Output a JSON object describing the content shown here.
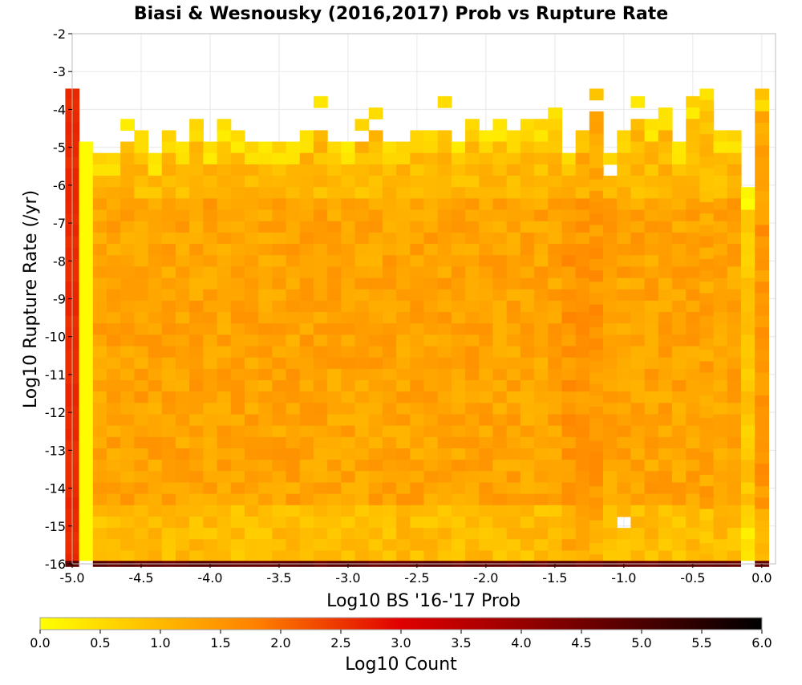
{
  "chart_data": {
    "type": "heatmap",
    "title": "Biasi & Wesnousky (2016,2017) Prob vs Rupture Rate",
    "xlabel": "Log10 BS '16-'17 Prob",
    "ylabel": "Log10 Rupture Rate (/yr)",
    "xlim": [
      -5.0,
      0.1
    ],
    "ylim": [
      -16,
      -2
    ],
    "x_ticks": [
      "-5.0",
      "-4.5",
      "-4.0",
      "-3.5",
      "-3.0",
      "-2.5",
      "-2.0",
      "-1.5",
      "-1.0",
      "-0.5",
      "0.0"
    ],
    "x_tick_values": [
      -5.0,
      -4.5,
      -4.0,
      -3.5,
      -3.0,
      -2.5,
      -2.0,
      -1.5,
      -1.0,
      -0.5,
      0.0
    ],
    "y_ticks": [
      "-2",
      "-3",
      "-4",
      "-5",
      "-6",
      "-7",
      "-8",
      "-9",
      "-10",
      "-11",
      "-12",
      "-13",
      "-14",
      "-15",
      "-16"
    ],
    "y_tick_values": [
      -2,
      -3,
      -4,
      -5,
      -6,
      -7,
      -8,
      -9,
      -10,
      -11,
      -12,
      -13,
      -14,
      -15,
      -16
    ],
    "grid": true,
    "bin_width_x": 0.1,
    "bin_height_y": 0.3,
    "colorbar": {
      "label": "Log10 Count",
      "min": 0.0,
      "max": 6.0,
      "ticks": [
        "0.0",
        "0.5",
        "1.0",
        "1.5",
        "2.0",
        "2.5",
        "3.0",
        "3.5",
        "4.0",
        "4.5",
        "5.0",
        "5.5",
        "6.0"
      ],
      "tick_values": [
        0.0,
        0.5,
        1.0,
        1.5,
        2.0,
        2.5,
        3.0,
        3.5,
        4.0,
        4.5,
        5.0,
        5.5,
        6.0
      ],
      "colors": [
        "#ffff00",
        "#ffc000",
        "#ff8000",
        "#e00000",
        "#800000",
        "#000000"
      ]
    },
    "columns": [
      {
        "x": -5.0,
        "top": -3.6,
        "base": 2.6,
        "empty_bins": []
      },
      {
        "x": -4.9,
        "top": -5.0,
        "base": 0.0,
        "empty_bins": [
          -15.9
        ]
      },
      {
        "x": -4.8,
        "top": -5.3,
        "base": 1.3,
        "empty_bins": []
      },
      {
        "x": -4.7,
        "top": -5.3,
        "base": 1.3,
        "empty_bins": []
      },
      {
        "x": -4.6,
        "top": -4.4,
        "base": 1.3,
        "empty_bins": [
          -4.7
        ]
      },
      {
        "x": -4.5,
        "top": -4.7,
        "base": 1.3,
        "empty_bins": []
      },
      {
        "x": -4.4,
        "top": -5.3,
        "base": 1.3,
        "empty_bins": []
      },
      {
        "x": -4.3,
        "top": -4.7,
        "base": 1.3,
        "empty_bins": []
      },
      {
        "x": -4.2,
        "top": -5.0,
        "base": 1.3,
        "empty_bins": []
      },
      {
        "x": -4.1,
        "top": -4.4,
        "base": 1.3,
        "empty_bins": []
      },
      {
        "x": -4.0,
        "top": -5.0,
        "base": 1.3,
        "empty_bins": []
      },
      {
        "x": -3.9,
        "top": -4.4,
        "base": 1.3,
        "empty_bins": []
      },
      {
        "x": -3.8,
        "top": -4.7,
        "base": 1.3,
        "empty_bins": []
      },
      {
        "x": -3.7,
        "top": -5.0,
        "base": 1.3,
        "empty_bins": []
      },
      {
        "x": -3.6,
        "top": -5.0,
        "base": 1.3,
        "empty_bins": []
      },
      {
        "x": -3.5,
        "top": -5.0,
        "base": 1.3,
        "empty_bins": []
      },
      {
        "x": -3.4,
        "top": -5.0,
        "base": 1.3,
        "empty_bins": []
      },
      {
        "x": -3.3,
        "top": -4.7,
        "base": 1.3,
        "empty_bins": []
      },
      {
        "x": -3.2,
        "top": -3.8,
        "base": 1.3,
        "empty_bins": [
          -4.1,
          -4.4
        ]
      },
      {
        "x": -3.1,
        "top": -5.0,
        "base": 1.3,
        "empty_bins": []
      },
      {
        "x": -3.0,
        "top": -5.0,
        "base": 1.3,
        "empty_bins": []
      },
      {
        "x": -2.9,
        "top": -4.4,
        "base": 1.3,
        "empty_bins": [
          -4.7
        ]
      },
      {
        "x": -2.8,
        "top": -4.1,
        "base": 1.3,
        "empty_bins": [
          -4.4
        ]
      },
      {
        "x": -2.7,
        "top": -5.0,
        "base": 1.3,
        "empty_bins": []
      },
      {
        "x": -2.6,
        "top": -5.0,
        "base": 1.3,
        "empty_bins": []
      },
      {
        "x": -2.5,
        "top": -4.7,
        "base": 1.3,
        "empty_bins": []
      },
      {
        "x": -2.4,
        "top": -4.7,
        "base": 1.3,
        "empty_bins": []
      },
      {
        "x": -2.3,
        "top": -3.8,
        "base": 1.3,
        "empty_bins": [
          -4.1,
          -4.4
        ]
      },
      {
        "x": -2.2,
        "top": -5.0,
        "base": 1.3,
        "empty_bins": []
      },
      {
        "x": -2.1,
        "top": -4.4,
        "base": 1.3,
        "empty_bins": []
      },
      {
        "x": -2.0,
        "top": -4.7,
        "base": 1.3,
        "empty_bins": []
      },
      {
        "x": -1.9,
        "top": -4.4,
        "base": 1.3,
        "empty_bins": []
      },
      {
        "x": -1.8,
        "top": -4.7,
        "base": 1.3,
        "empty_bins": []
      },
      {
        "x": -1.7,
        "top": -4.4,
        "base": 1.3,
        "empty_bins": []
      },
      {
        "x": -1.6,
        "top": -4.4,
        "base": 1.3,
        "empty_bins": []
      },
      {
        "x": -1.5,
        "top": -4.1,
        "base": 1.3,
        "empty_bins": []
      },
      {
        "x": -1.4,
        "top": -5.3,
        "base": 1.3,
        "empty_bins": []
      },
      {
        "x": -1.3,
        "top": -4.7,
        "base": 1.3,
        "empty_bins": []
      },
      {
        "x": -1.2,
        "top": -3.6,
        "base": 1.3,
        "empty_bins": [
          -3.9
        ]
      },
      {
        "x": -1.1,
        "top": -5.3,
        "base": 1.3,
        "empty_bins": [
          -5.6
        ]
      },
      {
        "x": -1.0,
        "top": -4.7,
        "base": 1.3,
        "empty_bins": [
          -14.9
        ]
      },
      {
        "x": -0.9,
        "top": -3.8,
        "base": 1.3,
        "empty_bins": [
          -4.1
        ]
      },
      {
        "x": -0.8,
        "top": -4.4,
        "base": 1.3,
        "empty_bins": []
      },
      {
        "x": -0.7,
        "top": -4.1,
        "base": 1.3,
        "empty_bins": []
      },
      {
        "x": -0.6,
        "top": -5.0,
        "base": 1.3,
        "empty_bins": []
      },
      {
        "x": -0.5,
        "top": -3.8,
        "base": 1.3,
        "empty_bins": []
      },
      {
        "x": -0.4,
        "top": -3.6,
        "base": 1.3,
        "empty_bins": []
      },
      {
        "x": -0.3,
        "top": -4.7,
        "base": 1.3,
        "empty_bins": [
          -15.3
        ]
      },
      {
        "x": -0.2,
        "top": -4.7,
        "base": 1.3,
        "empty_bins": []
      },
      {
        "x": -0.1,
        "top": -6.2,
        "base": 1.3,
        "empty_bins": [
          -10.5,
          -12.9,
          -13.8,
          -15.1,
          -15.9
        ]
      },
      {
        "x": 0.0,
        "top": -3.6,
        "base": 1.3,
        "empty_bins": []
      }
    ],
    "bottom_row": {
      "y": -16.0,
      "value": 4.7,
      "empty_at_x": [
        -4.9,
        -0.1
      ]
    }
  }
}
